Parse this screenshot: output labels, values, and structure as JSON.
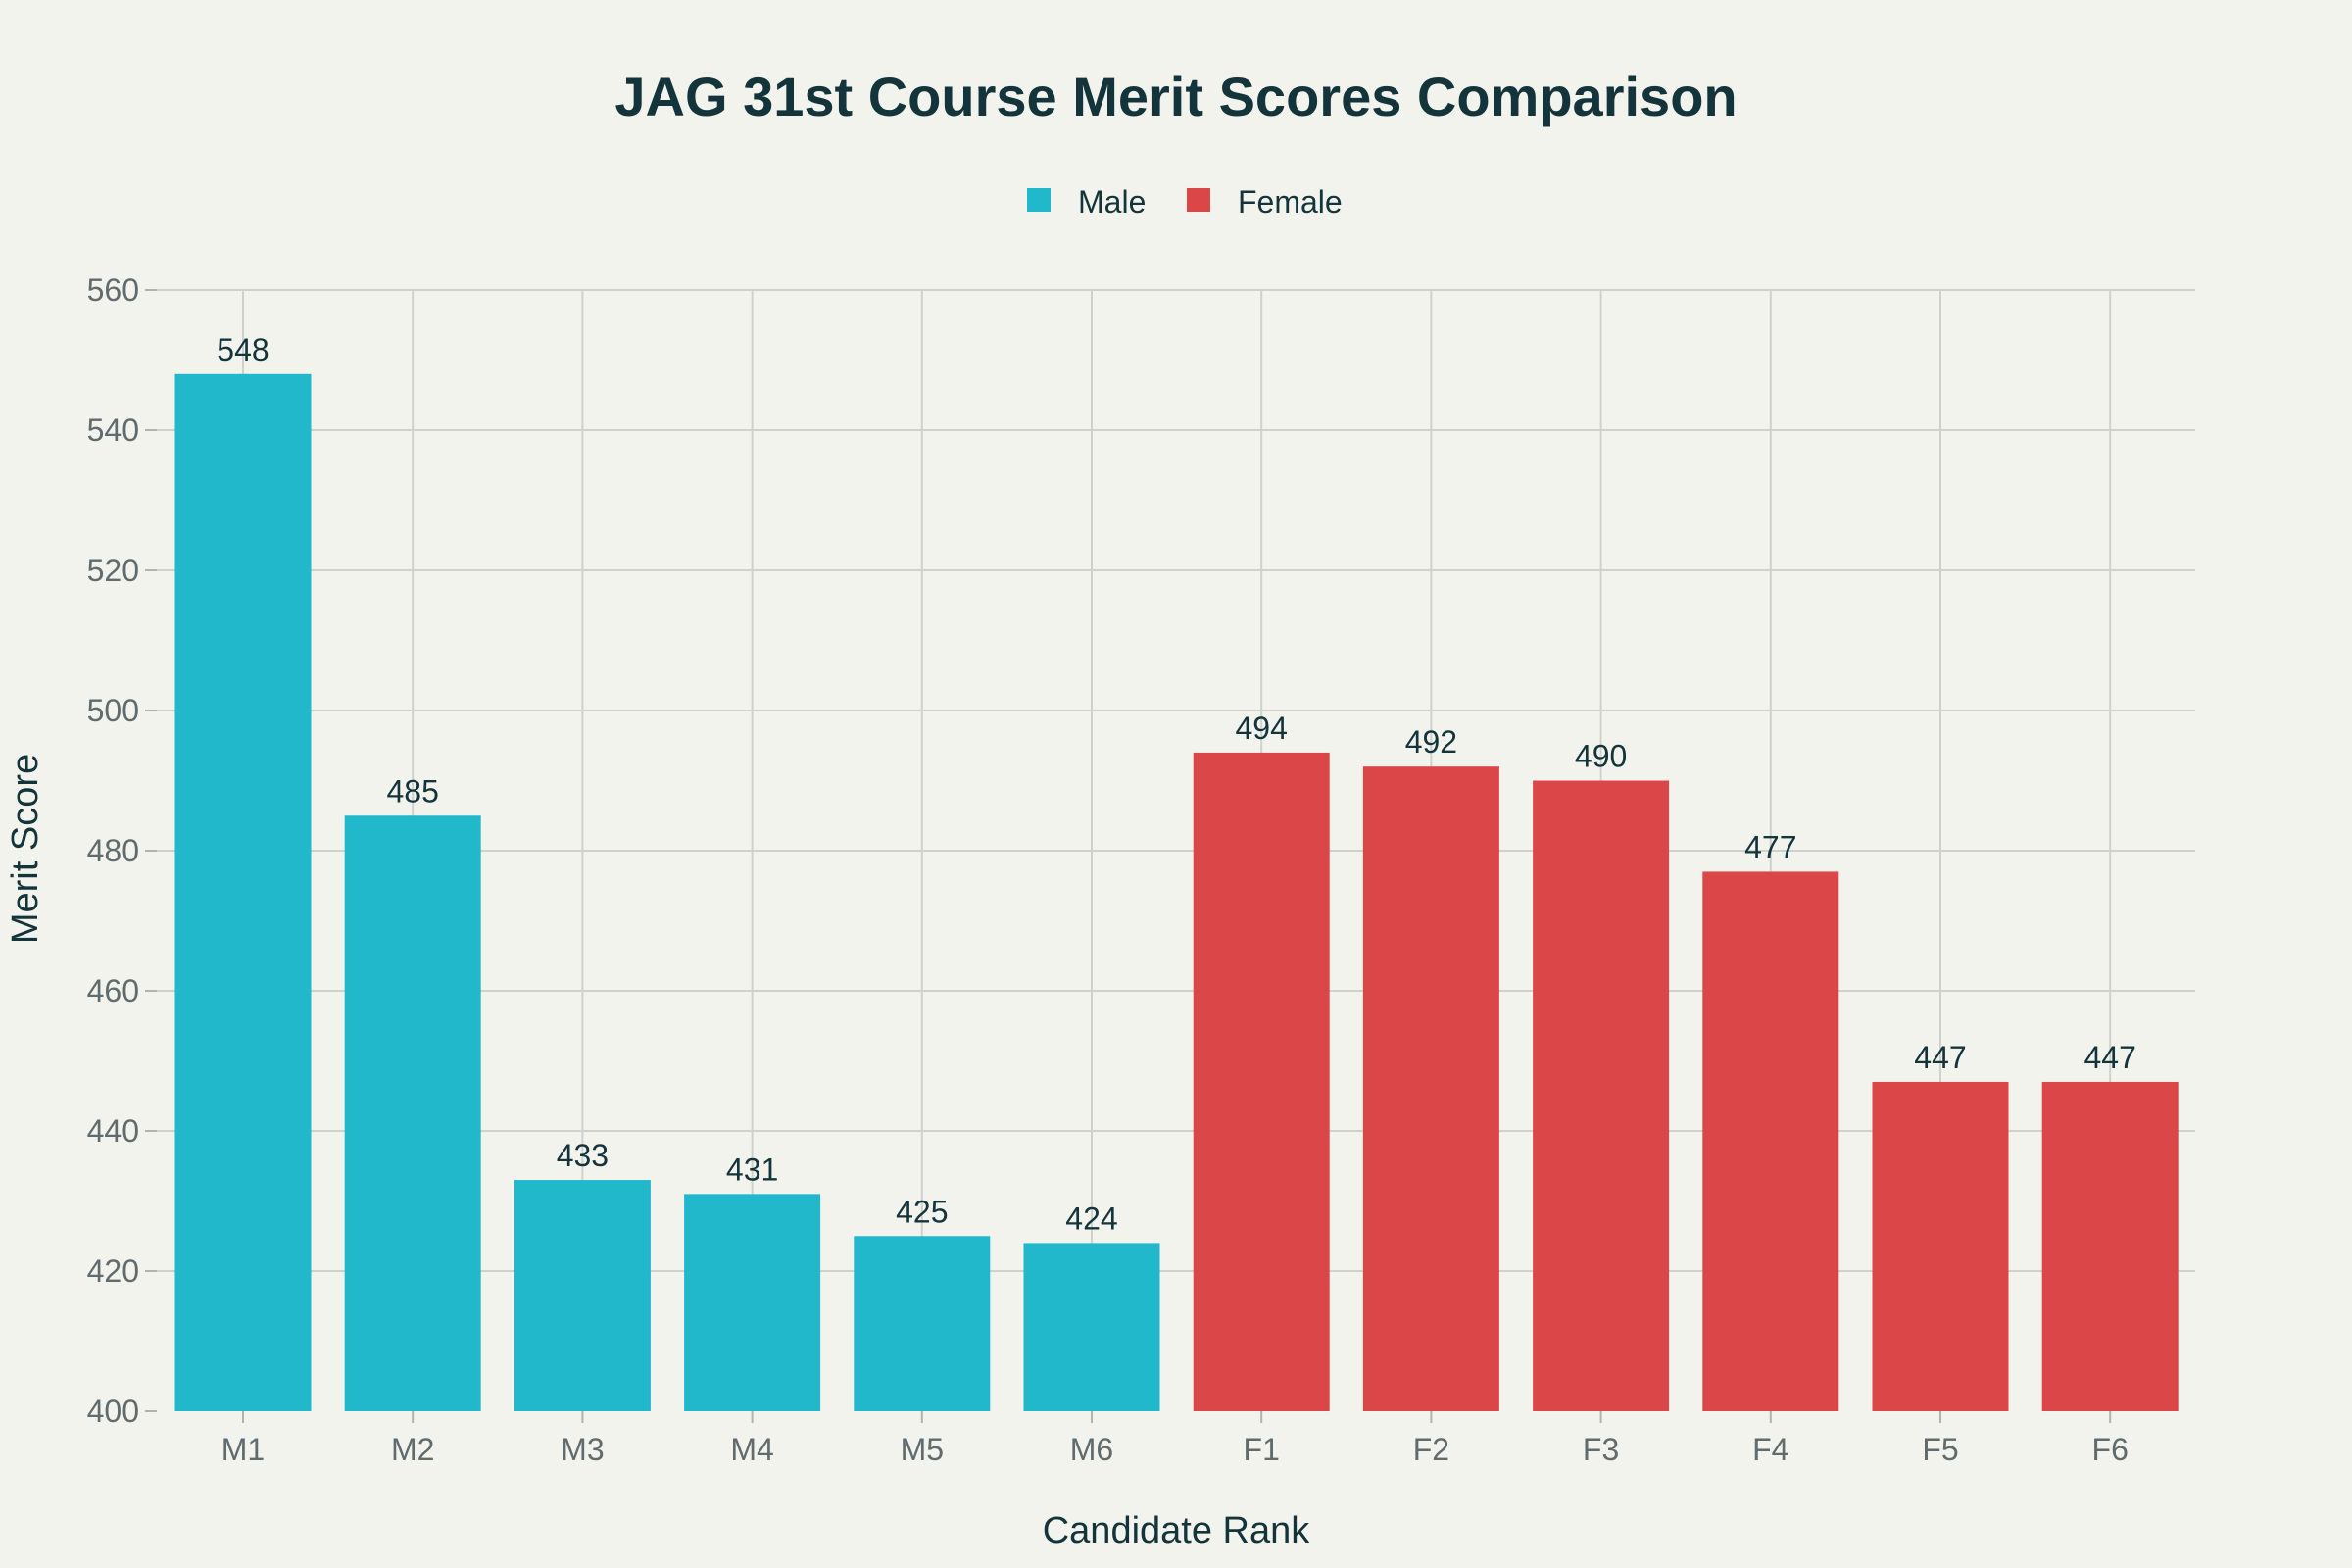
{
  "chart_data": {
    "type": "bar",
    "title": "JAG 31st Course Merit Scores Comparison",
    "xlabel": "Candidate Rank",
    "ylabel": "Merit Score",
    "ylim": [
      400,
      560
    ],
    "yticks": [
      400,
      420,
      440,
      460,
      480,
      500,
      520,
      540,
      560
    ],
    "grid": true,
    "legend": "top-center",
    "categories": [
      "M1",
      "M2",
      "M3",
      "M4",
      "M5",
      "M6",
      "F1",
      "F2",
      "F3",
      "F4",
      "F5",
      "F6"
    ],
    "series": [
      {
        "name": "Male",
        "color": "#21b8cc",
        "values": [
          548,
          485,
          433,
          431,
          425,
          424,
          null,
          null,
          null,
          null,
          null,
          null
        ]
      },
      {
        "name": "Female",
        "color": "#db4649",
        "values": [
          null,
          null,
          null,
          null,
          null,
          null,
          494,
          492,
          490,
          477,
          447,
          447
        ]
      }
    ]
  }
}
